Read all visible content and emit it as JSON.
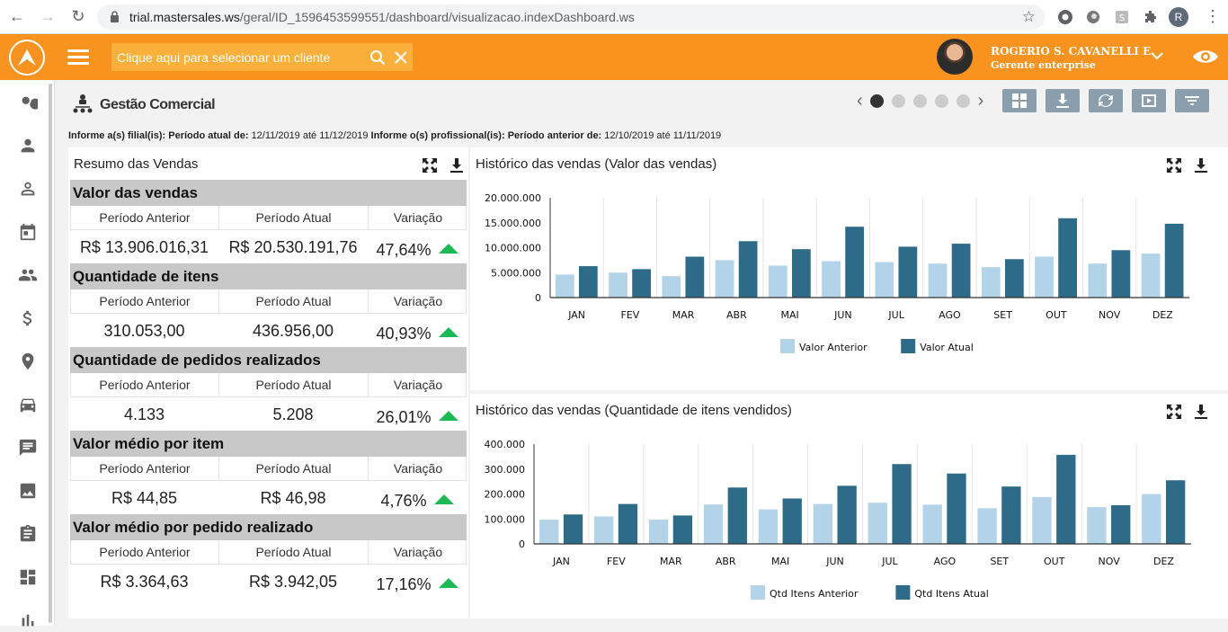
{
  "browser": {
    "url_host": "trial.mastersales.ws",
    "url_path": "/geral/ID_1596453599551/dashboard/visualizacao.indexDashboard.ws",
    "profile_initial": "R"
  },
  "header": {
    "client_placeholder": "Clique aqui para selecionar um cliente",
    "user_name": "ROGERIO S. CAVANELLI E.",
    "user_role": "Gerente enterprise"
  },
  "page": {
    "title": "Gestão Comercial",
    "info": {
      "filial_label": "Informe a(s) filial(is):",
      "atual_label": "Período atual de:",
      "atual_value": "12/11/2019 até 11/12/2019",
      "prof_label": "Informe o(s) profissional(is):",
      "anterior_label": "Período anterior de:",
      "anterior_value": "12/10/2019 até 11/11/2019"
    },
    "carousel": {
      "total": 5,
      "active": 1
    }
  },
  "summary": {
    "title": "Resumo das Vendas",
    "col_prev": "Período Anterior",
    "col_curr": "Período Atual",
    "col_var": "Variação",
    "metrics": [
      {
        "label": "Valor das vendas",
        "prev": "R$ 13.906.016,31",
        "curr": "R$ 20.530.191,76",
        "var": "47,64%"
      },
      {
        "label": "Quantidade de itens",
        "prev": "310.053,00",
        "curr": "436.956,00",
        "var": "40,93%"
      },
      {
        "label": "Quantidade de pedidos realizados",
        "prev": "4.133",
        "curr": "5.208",
        "var": "26,01%"
      },
      {
        "label": "Valor médio por item",
        "prev": "R$ 44,85",
        "curr": "R$ 46,98",
        "var": "4,76%"
      },
      {
        "label": "Valor médio por pedido realizado",
        "prev": "R$ 3.364,63",
        "curr": "R$ 3.942,05",
        "var": "17,16%"
      }
    ]
  },
  "colors": {
    "light": "#b3d3e8",
    "dark": "#2e6b88",
    "accent": "#f7931e",
    "up": "#1db954"
  },
  "chart_data": [
    {
      "type": "bar",
      "title": "Histórico das vendas (Valor das vendas)",
      "categories": [
        "JAN",
        "FEV",
        "MAR",
        "ABR",
        "MAI",
        "JUN",
        "JUL",
        "AGO",
        "SET",
        "OUT",
        "NOV",
        "DEZ"
      ],
      "ylim": [
        0,
        20000000
      ],
      "yticks": [
        "0",
        "5.000.000",
        "10.000.000",
        "15.000.000",
        "20.000.000"
      ],
      "series": [
        {
          "name": "Valor Anterior",
          "values": [
            4600000,
            5000000,
            4300000,
            7500000,
            6400000,
            7300000,
            7100000,
            6800000,
            6100000,
            8200000,
            6800000,
            8800000
          ]
        },
        {
          "name": "Valor Atual",
          "values": [
            6300000,
            5700000,
            8200000,
            11300000,
            9700000,
            14200000,
            10200000,
            10800000,
            7700000,
            15900000,
            9500000,
            14800000
          ]
        }
      ]
    },
    {
      "type": "bar",
      "title": "Histórico das vendas (Quantidade de itens vendidos)",
      "categories": [
        "JAN",
        "FEV",
        "MAR",
        "ABR",
        "MAI",
        "JUN",
        "JUL",
        "AGO",
        "SET",
        "OUT",
        "NOV",
        "DEZ"
      ],
      "ylim": [
        0,
        400000
      ],
      "yticks": [
        "0",
        "100.000",
        "200.000",
        "300.000",
        "400.000"
      ],
      "series": [
        {
          "name": "Qtd Itens Anterior",
          "values": [
            97000,
            110000,
            97000,
            158000,
            138000,
            160000,
            165000,
            157000,
            143000,
            188000,
            147000,
            200000
          ]
        },
        {
          "name": "Qtd Itens Atual",
          "values": [
            118000,
            160000,
            114000,
            226000,
            182000,
            233000,
            320000,
            282000,
            230000,
            357000,
            155000,
            255000
          ]
        }
      ]
    }
  ]
}
